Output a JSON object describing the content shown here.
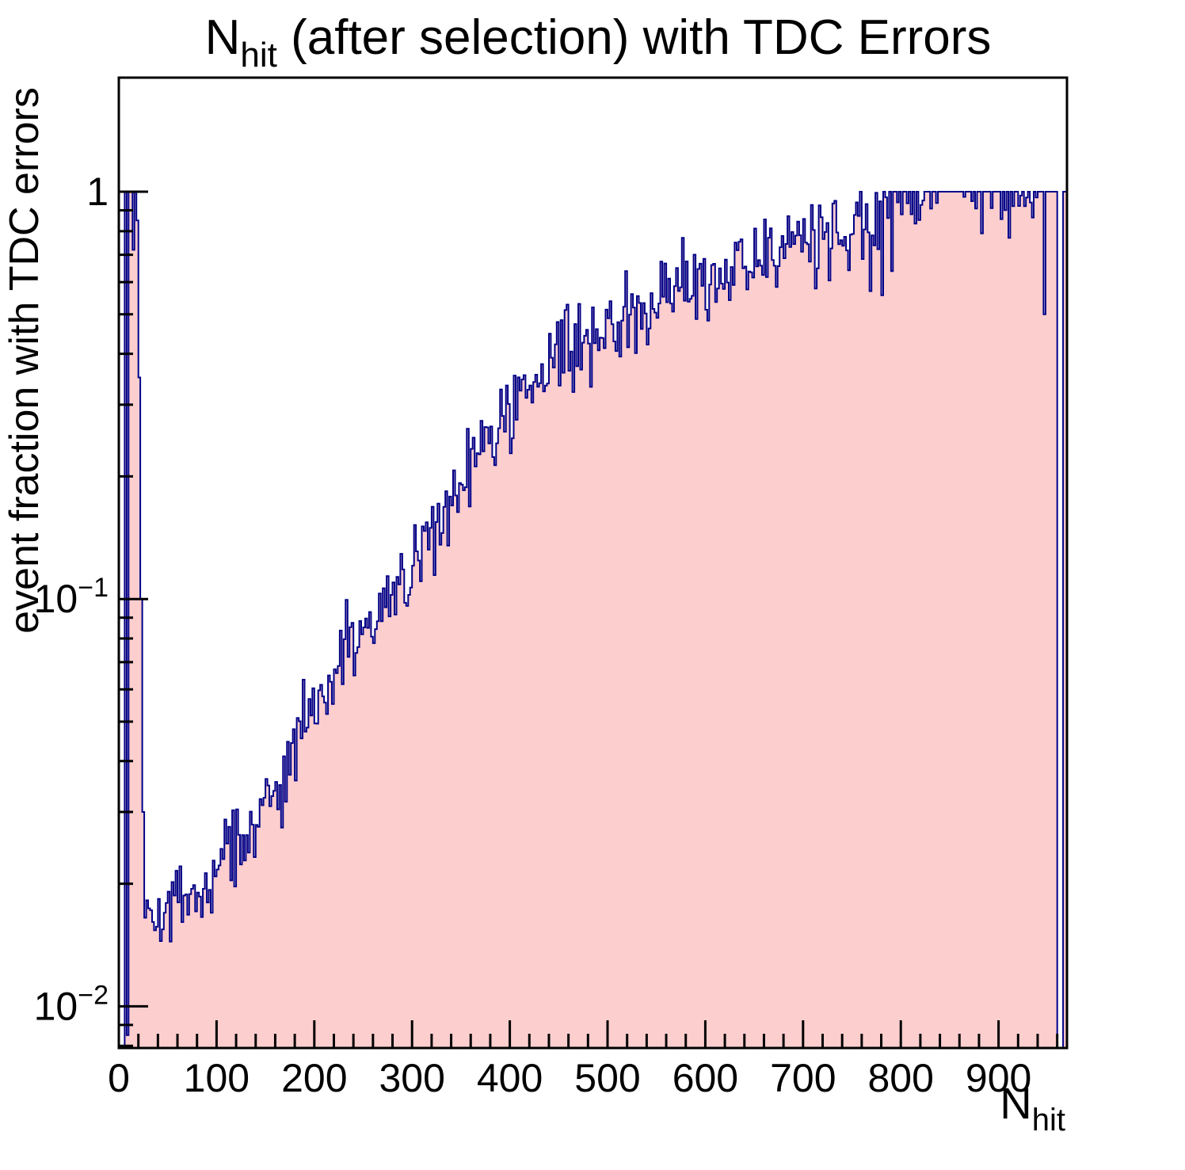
{
  "chart_data": {
    "type": "bar",
    "subtype": "histogram-step-log-y",
    "title": {
      "prefix": "N",
      "subscript": "hit",
      "suffix": " (after selection) with TDC Errors"
    },
    "x_axis": {
      "title_prefix": "N",
      "title_subscript": "hit",
      "min": 0,
      "max": 970,
      "major_ticks": [
        0,
        100,
        200,
        300,
        400,
        500,
        600,
        700,
        800,
        900
      ],
      "minor_tick_step": 20
    },
    "y_axis": {
      "title": "event fraction with TDC errors",
      "scale": "log",
      "min": 0.0079,
      "max": 1.906,
      "major_ticks": [
        {
          "value": 1,
          "label": "1"
        },
        {
          "value": 0.1,
          "mantissa": "10",
          "exponent": "−1"
        },
        {
          "value": 0.01,
          "mantissa": "10",
          "exponent": "−2"
        }
      ],
      "minor_ticks": [
        0.9,
        0.8,
        0.7,
        0.6,
        0.5,
        0.4,
        0.3,
        0.2,
        0.09,
        0.08,
        0.07,
        0.06,
        0.05,
        0.04,
        0.03,
        0.02,
        0.009,
        0.008
      ]
    },
    "bin_width": 2,
    "left_spike_bins": [
      [
        0,
        null
      ],
      [
        2,
        null
      ],
      [
        4,
        null
      ],
      [
        6,
        1
      ],
      [
        8,
        0.0085
      ],
      [
        10,
        1
      ],
      [
        12,
        1
      ],
      [
        14,
        0.72
      ],
      [
        16,
        1
      ],
      [
        18,
        0.85
      ],
      [
        20,
        0.35
      ],
      [
        22,
        0.1
      ],
      [
        24,
        0.03
      ],
      [
        26,
        0.0165
      ]
    ],
    "tail_bins": [
      [
        944,
        1
      ],
      [
        946,
        0.5
      ],
      [
        948,
        1
      ],
      [
        950,
        1
      ],
      [
        952,
        1
      ],
      [
        954,
        1
      ],
      [
        956,
        1
      ],
      [
        958,
        1
      ],
      [
        960,
        null
      ],
      [
        962,
        null
      ],
      [
        964,
        null
      ],
      [
        966,
        1
      ],
      [
        968,
        1
      ]
    ],
    "trend_points": [
      [
        26,
        0.016
      ],
      [
        40,
        0.0172
      ],
      [
        60,
        0.018
      ],
      [
        80,
        0.019
      ],
      [
        100,
        0.021
      ],
      [
        120,
        0.0255
      ],
      [
        140,
        0.028
      ],
      [
        155,
        0.03
      ],
      [
        170,
        0.036
      ],
      [
        186,
        0.05
      ],
      [
        200,
        0.054
      ],
      [
        220,
        0.064
      ],
      [
        240,
        0.074
      ],
      [
        260,
        0.086
      ],
      [
        280,
        0.1
      ],
      [
        300,
        0.12
      ],
      [
        320,
        0.145
      ],
      [
        340,
        0.175
      ],
      [
        365,
        0.225
      ],
      [
        385,
        0.255
      ],
      [
        400,
        0.28
      ],
      [
        420,
        0.315
      ],
      [
        446,
        0.39
      ],
      [
        470,
        0.43
      ],
      [
        500,
        0.47
      ],
      [
        527,
        0.5
      ],
      [
        560,
        0.56
      ],
      [
        585,
        0.6
      ],
      [
        608,
        0.62
      ],
      [
        640,
        0.66
      ],
      [
        673,
        0.72
      ],
      [
        700,
        0.75
      ],
      [
        729,
        0.78
      ],
      [
        750,
        0.83
      ],
      [
        770,
        0.86
      ],
      [
        790,
        0.9
      ],
      [
        810,
        0.93
      ],
      [
        830,
        0.95
      ],
      [
        850,
        0.96
      ],
      [
        870,
        0.965
      ],
      [
        890,
        0.968
      ],
      [
        910,
        0.97
      ],
      [
        930,
        0.972
      ],
      [
        944,
        0.975
      ]
    ],
    "noise": {
      "sigma_dex": 0.05,
      "downspike_probability": 0.025,
      "downspike_factor_min": 0.5,
      "downspike_factor_spread": 0.3,
      "saturate_above": 0.9,
      "saturate_probability": 0.35,
      "seed": 42
    },
    "style": {
      "line_color": "#000087",
      "fill_color": "#fdcece",
      "frame_color": "#000000",
      "text_color": "#000000"
    }
  }
}
